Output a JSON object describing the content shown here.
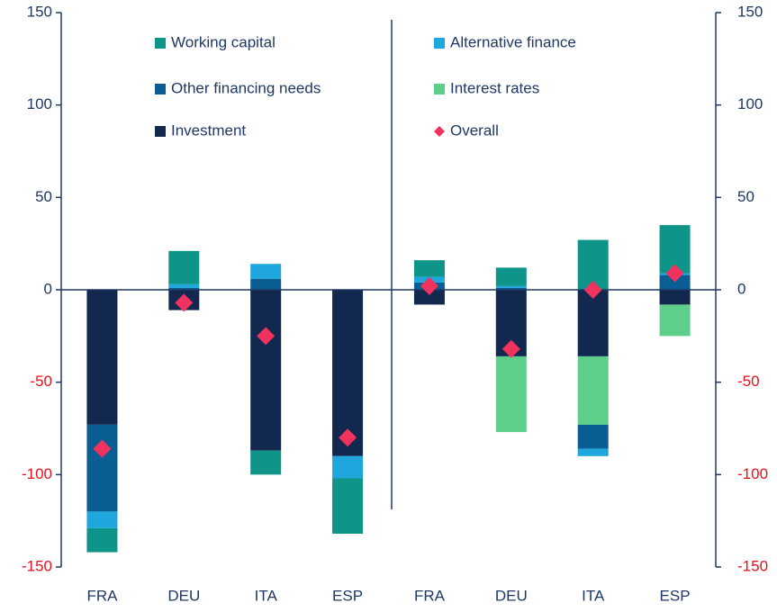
{
  "chart_data": {
    "type": "bar",
    "stacked": true,
    "categories": [
      "FRA",
      "DEU",
      "ITA",
      "ESP",
      "FRA",
      "DEU",
      "ITA",
      "ESP"
    ],
    "series": [
      {
        "name": "Investment",
        "color": "#13284f",
        "values": [
          -73,
          -11,
          -87,
          -90,
          -8,
          -36,
          -36,
          -8
        ]
      },
      {
        "name": "Interest rates",
        "color": "#5ecf8a",
        "values": [
          null,
          null,
          null,
          null,
          0,
          -41,
          -37,
          -17
        ]
      },
      {
        "name": "Other financing needs",
        "color": "#0b5e93",
        "values": [
          -47,
          1,
          6,
          0,
          4,
          1,
          -13,
          8
        ]
      },
      {
        "name": "Alternative finance",
        "color": "#1ea6dd",
        "values": [
          -9,
          2,
          8,
          -12,
          3,
          1,
          -4,
          1
        ]
      },
      {
        "name": "Working capital",
        "color": "#0e9488",
        "values": [
          -13,
          18,
          -13,
          -30,
          9,
          10,
          27,
          26
        ]
      }
    ],
    "overall": {
      "name": "Overall",
      "color": "#f0325e",
      "values": [
        -86,
        -7,
        -25,
        -80,
        2,
        -32,
        0,
        9
      ]
    },
    "ylim": [
      -150,
      150
    ],
    "yticks": [
      -150,
      -100,
      -50,
      0,
      50,
      100,
      150
    ],
    "y2lim": [
      -150,
      150
    ],
    "y2ticks": [
      -150,
      -100,
      -50,
      0,
      50,
      100,
      150
    ],
    "tick_color": "#1f3864",
    "negative_tick_color": "#e8101c"
  }
}
